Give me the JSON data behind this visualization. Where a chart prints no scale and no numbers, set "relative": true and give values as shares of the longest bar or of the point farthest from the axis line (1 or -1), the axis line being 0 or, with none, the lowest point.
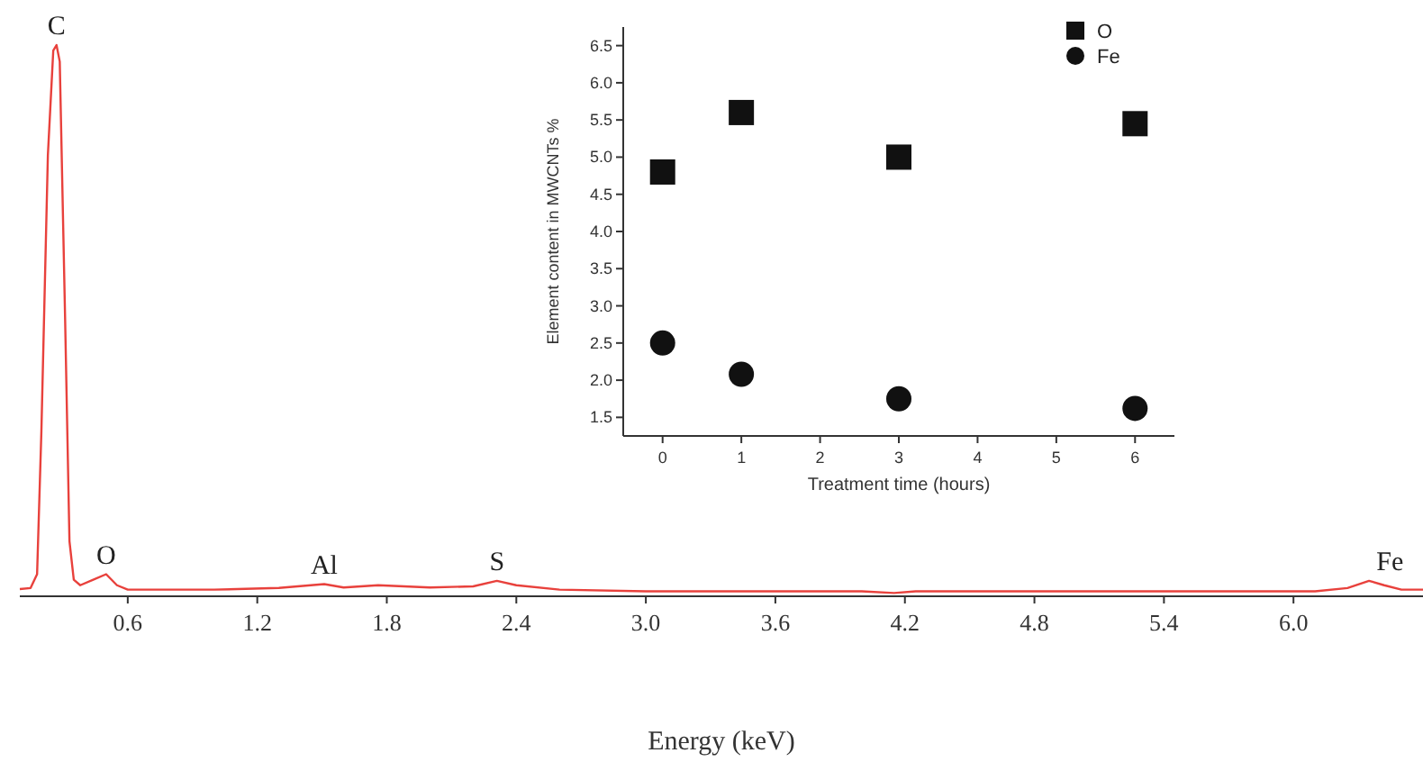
{
  "chart_data": [
    {
      "type": "line",
      "xlabel": "Energy (keV)",
      "relative": true,
      "xlim": [
        0.1,
        6.6
      ],
      "xticks": [
        0.6,
        1.2,
        1.8,
        2.4,
        {
          "value": 3,
          "label": "3.0"
        },
        3.6,
        4.2,
        4.8,
        5.4,
        {
          "value": 6,
          "label": "6.0"
        }
      ],
      "series": [
        {
          "color": "#e8413c",
          "x": [
            0.1,
            0.15,
            0.18,
            0.2,
            0.23,
            0.255,
            0.27,
            0.285,
            0.31,
            0.33,
            0.35,
            0.38,
            0.44,
            0.5,
            0.55,
            0.6,
            1.0,
            1.3,
            1.51,
            1.6,
            1.76,
            2.0,
            2.2,
            2.31,
            2.4,
            2.6,
            3.0,
            4.0,
            4.15,
            4.25,
            5.0,
            6.1,
            6.25,
            6.35,
            6.42,
            6.5,
            6.6
          ],
          "values": [
            0.013,
            0.015,
            0.04,
            0.3,
            0.8,
            0.99,
            1.0,
            0.97,
            0.5,
            0.1,
            0.03,
            0.02,
            0.03,
            0.04,
            0.02,
            0.012,
            0.012,
            0.015,
            0.022,
            0.016,
            0.02,
            0.016,
            0.018,
            0.028,
            0.02,
            0.012,
            0.009,
            0.009,
            0.006,
            0.009,
            0.009,
            0.009,
            0.015,
            0.028,
            0.02,
            0.012,
            0.012
          ]
        }
      ],
      "annotations": [
        {
          "text": "C",
          "x": 0.27,
          "y": 1.0
        },
        {
          "text": "O",
          "x": 0.5,
          "y": 0.04
        },
        {
          "text": "Al",
          "x": 1.51,
          "y": 0.022
        },
        {
          "text": "S",
          "x": 2.31,
          "y": 0.028
        },
        {
          "text": "Fe",
          "x": 6.38,
          "y": 0.028
        }
      ]
    },
    {
      "type": "scatter",
      "xlabel": "Treatment time (hours)",
      "ylabel": "Element content in MWCNTs %",
      "x": [
        0,
        1,
        3,
        6
      ],
      "xlim": [
        -0.5,
        6.5
      ],
      "xticks": [
        0,
        1,
        2,
        3,
        4,
        5,
        6
      ],
      "ylim": [
        1.25,
        6.75
      ],
      "yticks": [
        1.5,
        {
          "value": 2,
          "label": "2.0"
        },
        2.5,
        {
          "value": 3,
          "label": "3.0"
        },
        3.5,
        {
          "value": 4,
          "label": "4.0"
        },
        4.5,
        {
          "value": 5,
          "label": "5.0"
        },
        5.5,
        {
          "value": 6,
          "label": "6.0"
        },
        6.5
      ],
      "legend": "top right",
      "series": [
        {
          "name": "O",
          "color": "#111111",
          "marker": "square",
          "values": [
            4.8,
            5.6,
            5.0,
            5.45
          ]
        },
        {
          "name": "Fe",
          "color": "#111111",
          "marker": "circle",
          "values": [
            2.5,
            2.08,
            1.75,
            1.62
          ]
        }
      ]
    }
  ]
}
